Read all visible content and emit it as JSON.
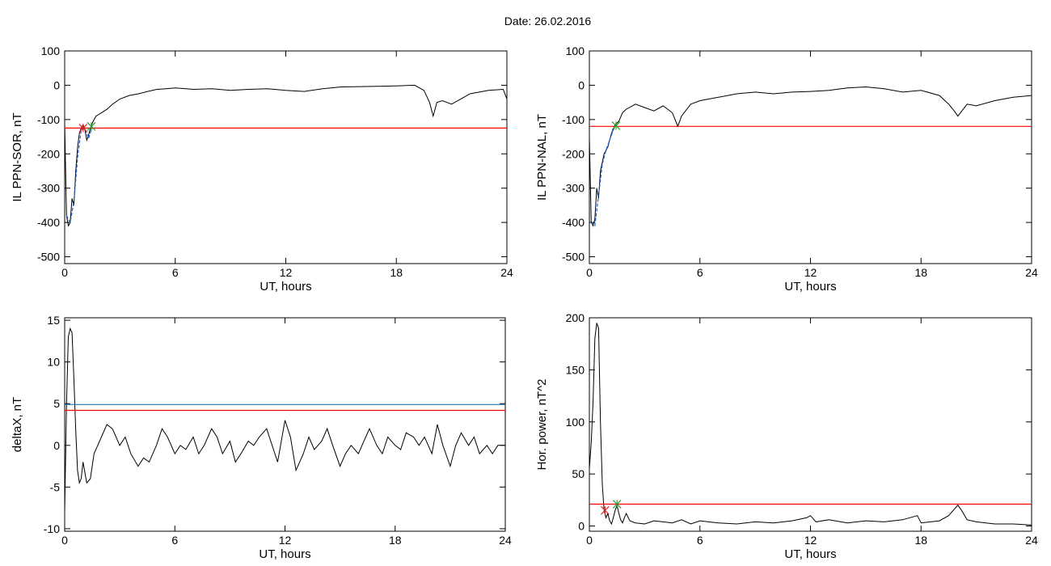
{
  "page": {
    "title": "Date:  26.02.2016"
  },
  "colors": {
    "trace": "#000000",
    "threshold": "#ff0000",
    "threshold2": "#1f77b4",
    "fit": "#1f5fd0",
    "marker_green": "#2ca02c",
    "marker_red": "#d62728"
  },
  "chart_data": [
    {
      "id": "il-sor",
      "type": "line",
      "title": "",
      "xlabel": "UT, hours",
      "ylabel": "IL PPN-SOR, nT",
      "xlim": [
        0,
        24
      ],
      "ylim": [
        -520,
        100
      ],
      "xticks": [
        0,
        6,
        12,
        18,
        24
      ],
      "yticks": [
        -500,
        -400,
        -300,
        -200,
        -100,
        0,
        100
      ],
      "grid": false,
      "series": [
        {
          "role": "data",
          "x": [
            0,
            0.1,
            0.2,
            0.3,
            0.4,
            0.5,
            0.6,
            0.7,
            0.8,
            0.9,
            1.0,
            1.1,
            1.2,
            1.3,
            1.4,
            1.5,
            1.7,
            2.0,
            2.3,
            2.6,
            3.0,
            3.5,
            4.0,
            4.5,
            5.0,
            5.5,
            6.0,
            7.0,
            8.0,
            9.0,
            10.0,
            11.0,
            12.0,
            13.0,
            14.0,
            15.0,
            16.0,
            17.0,
            18.0,
            19.0,
            19.5,
            19.8,
            20.0,
            20.2,
            20.5,
            21.0,
            21.5,
            22.0,
            23.0,
            23.8,
            24.0
          ],
          "y": [
            -110,
            -380,
            -410,
            -400,
            -330,
            -350,
            -250,
            -180,
            -140,
            -125,
            -115,
            -130,
            -160,
            -145,
            -125,
            -110,
            -90,
            -80,
            -70,
            -55,
            -40,
            -30,
            -25,
            -18,
            -12,
            -10,
            -8,
            -12,
            -10,
            -15,
            -12,
            -10,
            -15,
            -18,
            -10,
            -5,
            -4,
            -3,
            -2,
            0,
            -15,
            -50,
            -90,
            -50,
            -45,
            -55,
            -40,
            -25,
            -15,
            -12,
            -40
          ]
        },
        {
          "role": "fit",
          "x": [
            0.1,
            0.3,
            0.5,
            0.7,
            0.9,
            1.1,
            1.3,
            1.5
          ],
          "y": [
            -380,
            -400,
            -340,
            -210,
            -130,
            -125,
            -155,
            -120
          ]
        },
        {
          "role": "threshold",
          "x": [
            0,
            24
          ],
          "y": [
            -125,
            -125
          ]
        }
      ],
      "markers": [
        {
          "x": 1.0,
          "y": -125,
          "color": "marker_red"
        },
        {
          "x": 1.45,
          "y": -120,
          "color": "marker_green"
        }
      ]
    },
    {
      "id": "il-nal",
      "type": "line",
      "title": "",
      "xlabel": "UT, hours",
      "ylabel": "IL PPN-NAL, nT",
      "xlim": [
        0,
        24
      ],
      "ylim": [
        -520,
        100
      ],
      "xticks": [
        0,
        6,
        12,
        18,
        24
      ],
      "yticks": [
        -500,
        -400,
        -300,
        -200,
        -100,
        0,
        100
      ],
      "grid": false,
      "series": [
        {
          "role": "data",
          "x": [
            0,
            0.1,
            0.2,
            0.3,
            0.4,
            0.5,
            0.6,
            0.8,
            1.0,
            1.2,
            1.4,
            1.6,
            1.8,
            2.0,
            2.5,
            3.0,
            3.5,
            4.0,
            4.5,
            4.8,
            5.0,
            5.5,
            6.0,
            7.0,
            8.0,
            9.0,
            10.0,
            11.0,
            12.0,
            13.0,
            14.0,
            15.0,
            16.0,
            17.0,
            18.0,
            19.0,
            19.5,
            19.8,
            20.0,
            20.5,
            21.0,
            22.0,
            23.0,
            24.0
          ],
          "y": [
            -150,
            -400,
            -410,
            -390,
            -300,
            -330,
            -250,
            -200,
            -180,
            -140,
            -115,
            -105,
            -80,
            -70,
            -55,
            -65,
            -75,
            -60,
            -80,
            -120,
            -90,
            -55,
            -45,
            -35,
            -25,
            -20,
            -25,
            -20,
            -18,
            -15,
            -8,
            -5,
            -10,
            -20,
            -15,
            -30,
            -55,
            -75,
            -90,
            -55,
            -60,
            -45,
            -35,
            -30
          ]
        },
        {
          "role": "fit",
          "x": [
            0.1,
            0.3,
            0.5,
            0.7,
            0.9,
            1.1,
            1.3,
            1.5
          ],
          "y": [
            -400,
            -410,
            -320,
            -230,
            -190,
            -160,
            -130,
            -115
          ]
        },
        {
          "role": "threshold",
          "x": [
            0,
            24
          ],
          "y": [
            -120,
            -120
          ]
        }
      ],
      "markers": [
        {
          "x": 1.45,
          "y": -118,
          "color": "marker_green"
        }
      ]
    },
    {
      "id": "deltax",
      "type": "line",
      "title": "",
      "xlabel": "UT, hours",
      "ylabel": "deltaX, nT",
      "xlim": [
        0,
        24
      ],
      "ylim": [
        -10.3,
        15.3
      ],
      "xticks": [
        0,
        6,
        12,
        18,
        24
      ],
      "yticks": [
        -10,
        -5,
        0,
        5,
        10,
        15
      ],
      "grid": false,
      "series": [
        {
          "role": "data",
          "x": [
            0,
            0.1,
            0.2,
            0.3,
            0.4,
            0.5,
            0.6,
            0.7,
            0.8,
            0.9,
            1.0,
            1.2,
            1.4,
            1.6,
            1.8,
            2.0,
            2.3,
            2.6,
            3.0,
            3.3,
            3.6,
            4.0,
            4.3,
            4.6,
            5.0,
            5.3,
            5.6,
            6.0,
            6.3,
            6.6,
            7.0,
            7.3,
            7.6,
            8.0,
            8.3,
            8.6,
            9.0,
            9.3,
            9.6,
            10.0,
            10.3,
            10.6,
            11.0,
            11.3,
            11.6,
            12.0,
            12.3,
            12.6,
            13.0,
            13.3,
            13.6,
            14.0,
            14.3,
            14.6,
            15.0,
            15.3,
            15.6,
            16.0,
            16.3,
            16.6,
            17.0,
            17.3,
            17.6,
            18.0,
            18.3,
            18.6,
            19.0,
            19.3,
            19.6,
            20.0,
            20.3,
            20.6,
            21.0,
            21.3,
            21.6,
            22.0,
            22.3,
            22.6,
            23.0,
            23.3,
            23.6,
            24.0
          ],
          "y": [
            -8,
            5,
            13,
            14,
            13.5,
            8,
            2,
            -3,
            -4.5,
            -4,
            -2,
            -4.5,
            -4,
            -1,
            0,
            1,
            2.5,
            2,
            0,
            1,
            -1,
            -2.5,
            -1.5,
            -2,
            0,
            2,
            1,
            -1,
            0,
            -0.5,
            1,
            -1,
            0,
            2,
            1,
            -1,
            0.5,
            -2,
            -1,
            0.5,
            0,
            1,
            2,
            0,
            -2,
            3,
            1,
            -3,
            -1,
            1,
            -0.5,
            0.5,
            2,
            0,
            -2.5,
            -1,
            0,
            -1,
            0.5,
            2,
            0,
            -1,
            1,
            0,
            -0.5,
            1.5,
            1,
            0,
            1,
            -1,
            2.5,
            0,
            -2.5,
            0,
            1.5,
            0,
            1,
            -1,
            0,
            -1,
            0,
            0
          ]
        },
        {
          "role": "threshold2",
          "x": [
            0,
            24
          ],
          "y": [
            4.9,
            4.9
          ]
        },
        {
          "role": "threshold",
          "x": [
            0,
            24
          ],
          "y": [
            4.2,
            4.2
          ]
        }
      ],
      "markers": []
    },
    {
      "id": "hor-power",
      "type": "line",
      "title": "",
      "xlabel": "UT, hours",
      "ylabel": "Hor. power, nT^2",
      "xlim": [
        0,
        24
      ],
      "ylim": [
        -5,
        200
      ],
      "xticks": [
        0,
        6,
        12,
        18,
        24
      ],
      "yticks": [
        0,
        50,
        100,
        150,
        200
      ],
      "grid": false,
      "series": [
        {
          "role": "data",
          "x": [
            0,
            0.1,
            0.2,
            0.3,
            0.4,
            0.5,
            0.6,
            0.7,
            0.8,
            0.9,
            1.0,
            1.1,
            1.2,
            1.3,
            1.4,
            1.5,
            1.6,
            1.7,
            1.8,
            1.9,
            2.0,
            2.2,
            2.5,
            3.0,
            3.5,
            4.0,
            4.5,
            5.0,
            5.5,
            6.0,
            7.0,
            8.0,
            9.0,
            10.0,
            11.0,
            11.8,
            12.0,
            12.3,
            13.0,
            14.0,
            15.0,
            16.0,
            17.0,
            17.8,
            18.0,
            19.0,
            19.5,
            20.0,
            20.2,
            20.5,
            21.0,
            22.0,
            23.0,
            24.0
          ],
          "y": [
            55,
            80,
            120,
            180,
            195,
            190,
            100,
            40,
            15,
            8,
            12,
            5,
            2,
            8,
            15,
            20,
            12,
            6,
            3,
            8,
            12,
            5,
            3,
            2,
            5,
            4,
            3,
            6,
            2,
            5,
            3,
            2,
            4,
            3,
            5,
            8,
            10,
            4,
            6,
            3,
            5,
            4,
            6,
            10,
            3,
            5,
            10,
            20,
            15,
            6,
            4,
            2,
            2,
            1
          ]
        },
        {
          "role": "threshold",
          "x": [
            0,
            24
          ],
          "y": [
            21,
            21
          ]
        }
      ],
      "markers": [
        {
          "x": 0.85,
          "y": 15,
          "color": "marker_red"
        },
        {
          "x": 1.5,
          "y": 21,
          "color": "marker_green"
        }
      ]
    }
  ]
}
